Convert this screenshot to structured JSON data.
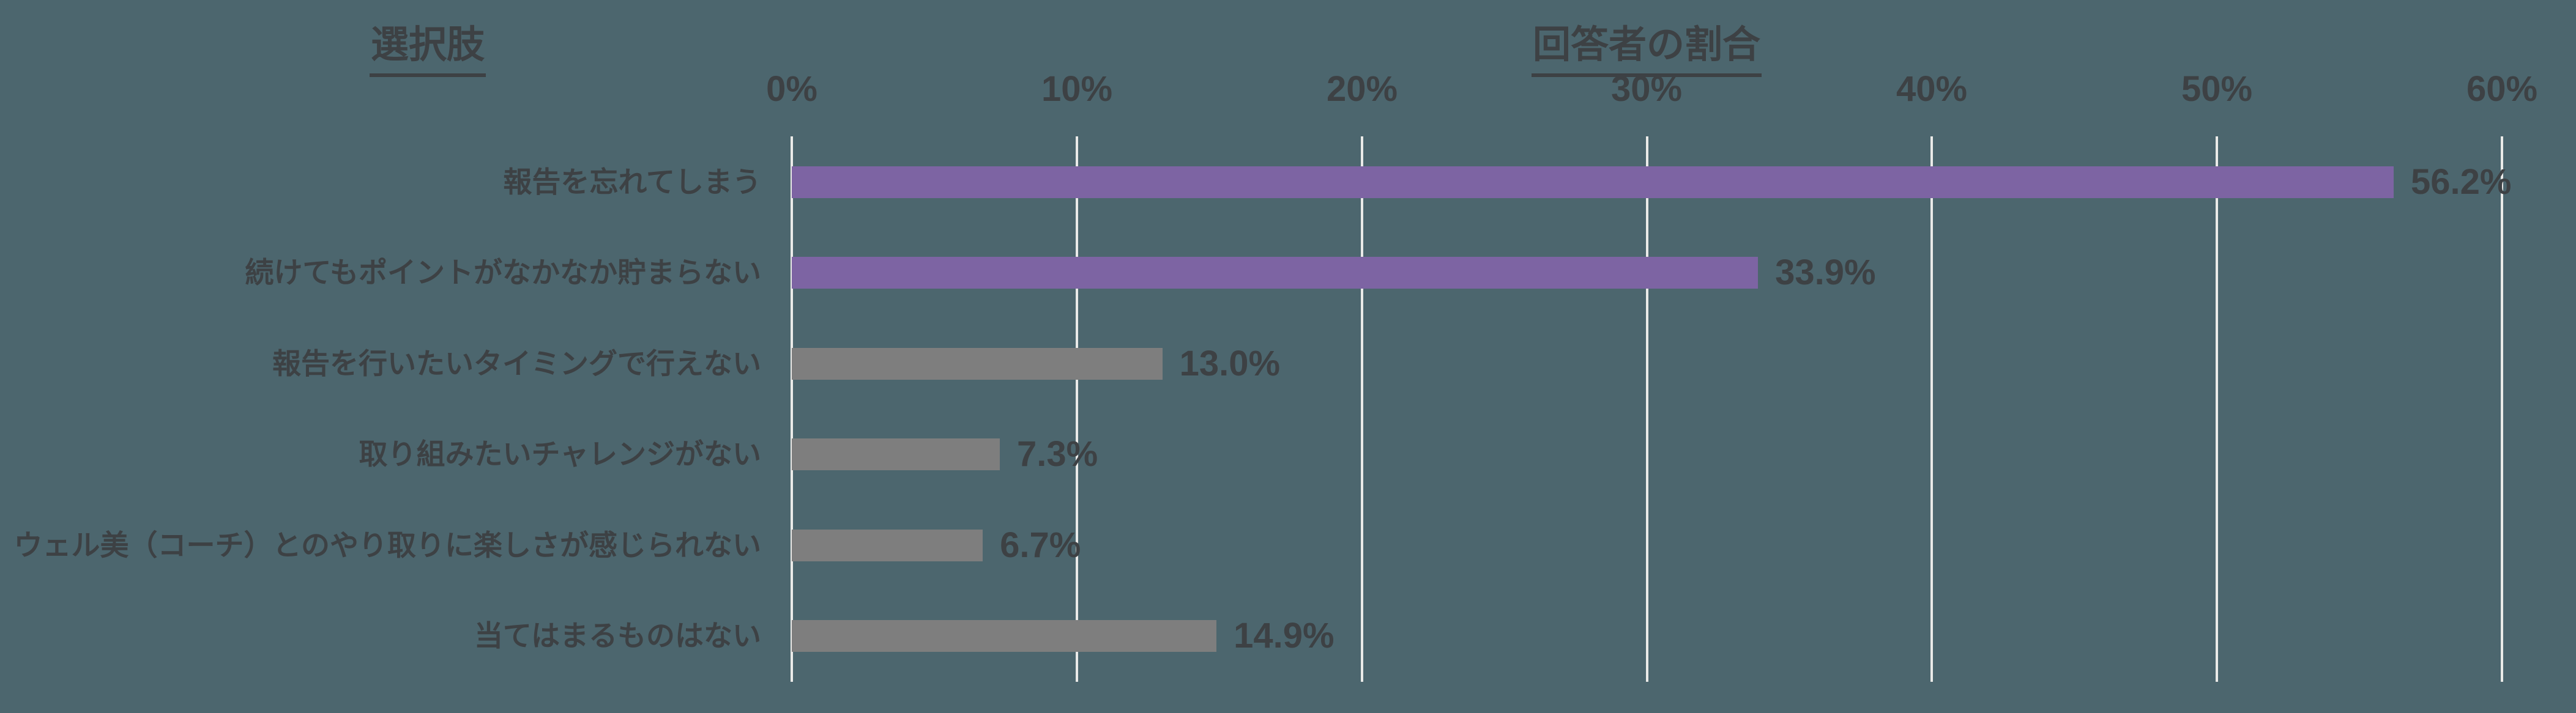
{
  "titles": {
    "left": "選択肢",
    "right": "回答者の割合"
  },
  "chart_data": {
    "type": "bar",
    "orientation": "horizontal",
    "title": "",
    "xlabel": "回答者の割合",
    "ylabel": "選択肢",
    "categories": [
      "報告を忘れてしまう",
      "続けてもポイントがなかなか貯まらない",
      "報告を行いたいタイミングで行えない",
      "取り組みたいチャレンジがない",
      "ウェル美（コーチ）とのやり取りに楽しさが感じられない",
      "当てはまるものはない"
    ],
    "values": [
      56.2,
      33.9,
      13.0,
      7.3,
      6.7,
      14.9
    ],
    "value_labels": [
      "56.2%",
      "33.9%",
      "13.0%",
      "7.3%",
      "6.7%",
      "14.9%"
    ],
    "x_ticks": [
      "0%",
      "10%",
      "20%",
      "30%",
      "40%",
      "50%",
      "60%"
    ],
    "xlim": [
      0,
      60
    ],
    "grid": "vertical-gridlines-on",
    "legend": "none",
    "bar_colors": [
      "#7D64A3",
      "#7D64A3",
      "#7E7E7E",
      "#7E7E7E",
      "#7E7E7E",
      "#7E7E7E"
    ],
    "colors": {
      "background": "#4C666E",
      "gridline": "#EAEAE8",
      "text": "#3D4144",
      "purple_accent": "#7D64A3",
      "gray_bar": "#7E7E7E"
    }
  }
}
